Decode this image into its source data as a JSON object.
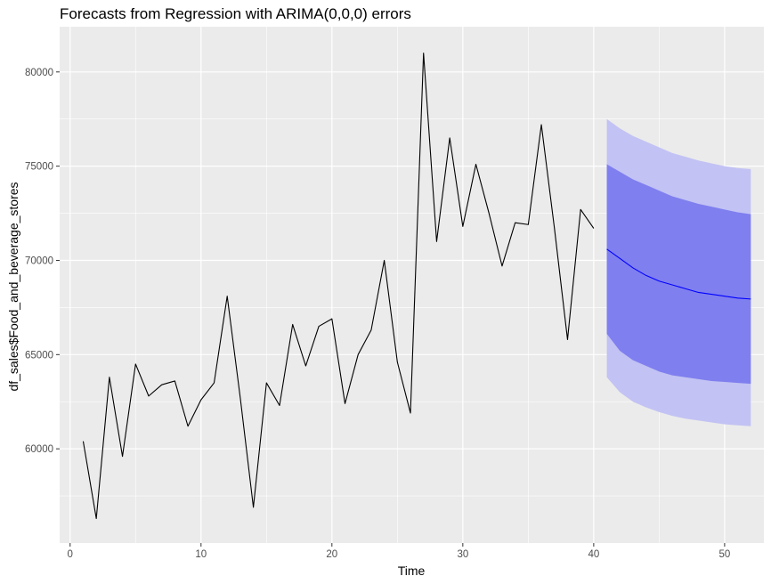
{
  "chart_data": {
    "type": "line",
    "title": "Forecasts from Regression with ARIMA(0,0,0) errors",
    "xlabel": "Time",
    "ylabel": "df_sales$Food_and_beverage_stores",
    "xlim": [
      -0.8,
      53.0
    ],
    "ylim": [
      55000,
      82400
    ],
    "x_ticks": [
      0,
      10,
      20,
      30,
      40,
      50
    ],
    "y_ticks": [
      60000,
      65000,
      70000,
      75000,
      80000
    ],
    "x_tick_labels": [
      "0",
      "10",
      "20",
      "30",
      "40",
      "50"
    ],
    "y_tick_labels": [
      "60000",
      "65000",
      "70000",
      "75000",
      "80000"
    ],
    "grid": true,
    "observed": {
      "name": "observed",
      "color": "#000000",
      "x": [
        1,
        2,
        3,
        4,
        5,
        6,
        7,
        8,
        9,
        10,
        11,
        12,
        13,
        14,
        15,
        16,
        17,
        18,
        19,
        20,
        21,
        22,
        23,
        24,
        25,
        26,
        27,
        28,
        29,
        30,
        31,
        32,
        33,
        34,
        35,
        36,
        37,
        38,
        39,
        40
      ],
      "values": [
        60400,
        56300,
        63800,
        59600,
        64500,
        62800,
        63400,
        63600,
        61200,
        62600,
        63500,
        68100,
        62700,
        56900,
        63500,
        62300,
        66600,
        64400,
        66500,
        66900,
        62400,
        65000,
        66300,
        70000,
        64600,
        61900,
        81000,
        71000,
        76500,
        71800,
        75100,
        72500,
        69700,
        72000,
        71900,
        77200,
        71700,
        65800,
        72700,
        71700
      ]
    },
    "forecast": {
      "name": "point forecast",
      "color": "#0000ff",
      "x": [
        41,
        42,
        43,
        44,
        45,
        46,
        47,
        48,
        49,
        50,
        51,
        52
      ],
      "values": [
        70600,
        70100,
        69600,
        69200,
        68900,
        68700,
        68500,
        68300,
        68200,
        68100,
        68000,
        67950
      ],
      "lower80": [
        66100,
        65200,
        64700,
        64400,
        64100,
        63900,
        63800,
        63700,
        63600,
        63550,
        63500,
        63450
      ],
      "upper80": [
        75100,
        74700,
        74300,
        74000,
        73700,
        73400,
        73200,
        73000,
        72850,
        72700,
        72550,
        72450
      ],
      "lower95": [
        63800,
        63000,
        62500,
        62200,
        61950,
        61750,
        61600,
        61500,
        61400,
        61300,
        61250,
        61200
      ],
      "upper95": [
        77500,
        77000,
        76600,
        76300,
        76000,
        75700,
        75500,
        75300,
        75150,
        75000,
        74900,
        74850
      ],
      "band80_color": "#7f7fef",
      "band95_color": "#c2c2f4"
    }
  }
}
